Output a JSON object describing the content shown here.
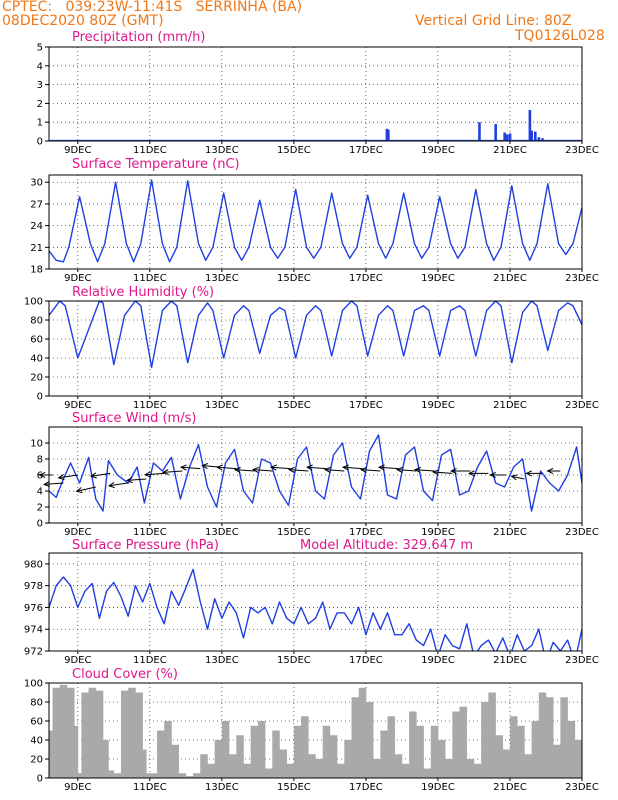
{
  "header": {
    "line1": "CPTEC:   039:23W-11:41S   SERRINHA (BA)",
    "line2": "08DEC2020 80Z (GMT)",
    "grid_note": "Vertical Grid Line: 80Z",
    "code": "TQ0126L028"
  },
  "colors": {
    "line": "#1f3fe0",
    "cloud": "#a9a9a9",
    "title": "#e0168a",
    "header": "#f07818"
  },
  "x_ticks": [
    "9DEC",
    "11DEC",
    "13DEC",
    "15DEC",
    "17DEC",
    "19DEC",
    "21DEC",
    "23DEC"
  ],
  "chart_data": [
    {
      "type": "bar",
      "title": "Precipitation (mm/h)",
      "ylim": [
        0,
        5
      ],
      "yticks": [
        0,
        1,
        2,
        3,
        4,
        5
      ],
      "x_unit": "days since 08DEC2020 00Z",
      "xlim": [
        8.2,
        23.0
      ],
      "x": [
        17.58,
        17.62,
        20.15,
        20.6,
        20.85,
        20.92,
        21.0,
        21.55,
        21.6,
        21.7,
        21.8,
        21.9
      ],
      "values": [
        0.65,
        0.6,
        1.0,
        0.9,
        0.45,
        0.35,
        0.4,
        1.65,
        0.55,
        0.5,
        0.2,
        0.15
      ]
    },
    {
      "type": "line",
      "title": "Surface Temperature (nC)",
      "ylim": [
        18,
        31
      ],
      "yticks": [
        18,
        21,
        24,
        27,
        30
      ],
      "xlim": [
        8.2,
        23.0
      ],
      "x": [
        8.2,
        8.4,
        8.6,
        8.75,
        9.05,
        9.35,
        9.55,
        9.75,
        10.05,
        10.35,
        10.55,
        10.75,
        11.05,
        11.35,
        11.55,
        11.75,
        12.05,
        12.35,
        12.55,
        12.75,
        13.05,
        13.35,
        13.55,
        13.75,
        14.05,
        14.35,
        14.55,
        14.75,
        15.05,
        15.35,
        15.55,
        15.75,
        16.05,
        16.35,
        16.55,
        16.75,
        17.05,
        17.35,
        17.55,
        17.75,
        18.05,
        18.35,
        18.55,
        18.75,
        19.05,
        19.35,
        19.55,
        19.75,
        20.05,
        20.35,
        20.55,
        20.75,
        21.05,
        21.35,
        21.55,
        21.75,
        22.05,
        22.35,
        22.55,
        22.75,
        23.0
      ],
      "values": [
        20.5,
        19.2,
        19.0,
        21.0,
        28.0,
        21.5,
        19.0,
        21.5,
        30.0,
        21.5,
        19.0,
        21.5,
        30.3,
        21.5,
        19.0,
        21.0,
        30.2,
        21.5,
        19.2,
        21.0,
        28.5,
        21.0,
        19.2,
        21.0,
        27.5,
        21.0,
        19.5,
        21.0,
        29.0,
        21.0,
        19.5,
        21.0,
        28.5,
        21.5,
        19.5,
        21.0,
        28.2,
        21.5,
        19.5,
        21.5,
        28.5,
        21.5,
        19.5,
        21.0,
        28.0,
        21.5,
        19.5,
        21.0,
        29.0,
        21.5,
        19.2,
        21.0,
        29.5,
        21.5,
        19.2,
        21.5,
        29.8,
        21.5,
        20.0,
        21.5,
        26.5
      ]
    },
    {
      "type": "line",
      "title": "Relative Humidity (%)",
      "ylim": [
        0,
        100
      ],
      "yticks": [
        0,
        20,
        40,
        60,
        80,
        100
      ],
      "xlim": [
        8.2,
        23.0
      ],
      "x": [
        8.2,
        8.5,
        8.65,
        9.0,
        9.35,
        9.6,
        9.7,
        10.0,
        10.3,
        10.6,
        10.75,
        11.05,
        11.35,
        11.6,
        11.75,
        12.05,
        12.35,
        12.6,
        12.75,
        13.05,
        13.35,
        13.6,
        13.75,
        14.05,
        14.35,
        14.6,
        14.75,
        15.05,
        15.35,
        15.6,
        15.75,
        16.05,
        16.35,
        16.6,
        16.75,
        17.05,
        17.35,
        17.6,
        17.75,
        18.05,
        18.35,
        18.6,
        18.75,
        19.05,
        19.35,
        19.6,
        19.75,
        20.05,
        20.35,
        20.6,
        20.75,
        21.05,
        21.35,
        21.6,
        21.75,
        22.05,
        22.35,
        22.6,
        22.75,
        23.0
      ],
      "values": [
        85,
        100,
        95,
        40,
        75,
        100,
        98,
        33,
        85,
        100,
        95,
        30,
        90,
        100,
        95,
        35,
        85,
        98,
        90,
        40,
        85,
        95,
        90,
        45,
        85,
        93,
        90,
        40,
        85,
        95,
        90,
        42,
        90,
        100,
        95,
        42,
        85,
        95,
        90,
        42,
        90,
        95,
        90,
        42,
        90,
        95,
        90,
        42,
        90,
        100,
        95,
        35,
        88,
        100,
        95,
        48,
        90,
        98,
        95,
        75
      ]
    },
    {
      "type": "line",
      "title": "Surface Wind (m/s)",
      "ylim": [
        0,
        12
      ],
      "yticks": [
        0,
        2,
        4,
        6,
        8,
        10
      ],
      "xlim": [
        8.2,
        23.0
      ],
      "x": [
        8.2,
        8.4,
        8.6,
        8.8,
        9.05,
        9.3,
        9.5,
        9.7,
        9.85,
        10.1,
        10.4,
        10.65,
        10.85,
        11.1,
        11.35,
        11.6,
        11.85,
        12.1,
        12.35,
        12.6,
        12.85,
        13.1,
        13.35,
        13.6,
        13.85,
        14.1,
        14.35,
        14.6,
        14.85,
        15.1,
        15.35,
        15.6,
        15.85,
        16.1,
        16.35,
        16.6,
        16.85,
        17.1,
        17.35,
        17.6,
        17.85,
        18.1,
        18.35,
        18.6,
        18.85,
        19.1,
        19.35,
        19.6,
        19.85,
        20.1,
        20.35,
        20.6,
        20.85,
        21.1,
        21.35,
        21.6,
        21.85,
        22.1,
        22.35,
        22.6,
        22.85,
        23.0
      ],
      "values": [
        4.0,
        3.2,
        5.5,
        7.5,
        5.0,
        8.2,
        3.0,
        1.5,
        7.8,
        6.0,
        5.0,
        7.0,
        2.5,
        7.5,
        6.5,
        8.2,
        3.0,
        7.0,
        9.8,
        4.5,
        2.0,
        7.5,
        9.2,
        4.0,
        2.5,
        8.0,
        7.5,
        4.0,
        2.2,
        8.0,
        9.5,
        4.0,
        3.0,
        8.5,
        10.0,
        4.5,
        3.0,
        9.0,
        11.0,
        3.5,
        3.0,
        8.5,
        9.5,
        4.0,
        2.8,
        8.5,
        9.2,
        3.5,
        4.0,
        7.0,
        9.0,
        5.0,
        4.5,
        7.0,
        8.0,
        1.5,
        6.5,
        5.0,
        4.0,
        6.0,
        9.5,
        5.0
      ],
      "arrows": [
        {
          "x": 8.3,
          "y": 6.0,
          "u": -0.4,
          "v": 0.0
        },
        {
          "x": 8.6,
          "y": 5.0,
          "u": -0.6,
          "v": -0.1
        },
        {
          "x": 9.0,
          "y": 6.0,
          "u": -0.6,
          "v": -0.2
        },
        {
          "x": 9.5,
          "y": 4.5,
          "u": -0.6,
          "v": -0.3
        },
        {
          "x": 9.9,
          "y": 6.2,
          "u": -0.6,
          "v": -0.2
        },
        {
          "x": 10.4,
          "y": 5.0,
          "u": -0.6,
          "v": -0.2
        },
        {
          "x": 10.9,
          "y": 5.5,
          "u": -0.6,
          "v": -0.1
        },
        {
          "x": 11.4,
          "y": 6.2,
          "u": -0.6,
          "v": -0.1
        },
        {
          "x": 11.9,
          "y": 6.5,
          "u": -0.6,
          "v": -0.1
        },
        {
          "x": 12.4,
          "y": 6.8,
          "u": -0.6,
          "v": 0.1
        },
        {
          "x": 12.9,
          "y": 7.0,
          "u": -0.5,
          "v": 0.1
        },
        {
          "x": 13.4,
          "y": 6.8,
          "u": -0.6,
          "v": 0.1
        },
        {
          "x": 13.9,
          "y": 6.5,
          "u": -0.6,
          "v": 0.1
        },
        {
          "x": 14.4,
          "y": 6.5,
          "u": -0.6,
          "v": 0.1
        },
        {
          "x": 14.9,
          "y": 6.8,
          "u": -0.6,
          "v": 0.1
        },
        {
          "x": 15.4,
          "y": 6.5,
          "u": -0.6,
          "v": 0.1
        },
        {
          "x": 15.9,
          "y": 6.8,
          "u": -0.6,
          "v": 0.1
        },
        {
          "x": 16.4,
          "y": 6.5,
          "u": -0.6,
          "v": 0.1
        },
        {
          "x": 16.9,
          "y": 6.8,
          "u": -0.6,
          "v": 0.1
        },
        {
          "x": 17.4,
          "y": 6.5,
          "u": -0.6,
          "v": 0.1
        },
        {
          "x": 17.9,
          "y": 6.8,
          "u": -0.6,
          "v": 0.1
        },
        {
          "x": 18.4,
          "y": 6.5,
          "u": -0.6,
          "v": 0.1
        },
        {
          "x": 18.9,
          "y": 6.5,
          "u": -0.6,
          "v": 0.1
        },
        {
          "x": 19.4,
          "y": 6.2,
          "u": -0.6,
          "v": 0.1
        },
        {
          "x": 19.9,
          "y": 6.5,
          "u": -0.6,
          "v": 0.0
        },
        {
          "x": 20.4,
          "y": 6.2,
          "u": -0.6,
          "v": 0.0
        },
        {
          "x": 20.9,
          "y": 6.0,
          "u": -0.5,
          "v": 0.0
        },
        {
          "x": 21.4,
          "y": 5.5,
          "u": -0.4,
          "v": 0.2
        },
        {
          "x": 21.9,
          "y": 6.2,
          "u": -0.5,
          "v": 0.0
        },
        {
          "x": 22.4,
          "y": 6.5,
          "u": -0.4,
          "v": 0.0
        }
      ]
    },
    {
      "type": "line",
      "title": "Surface Pressure (hPa)",
      "annotation": "Model Altitude: 329.647 m",
      "ylim": [
        972,
        981
      ],
      "yticks": [
        972,
        974,
        976,
        978,
        980
      ],
      "xlim": [
        8.2,
        23.0
      ],
      "x": [
        8.2,
        8.4,
        8.6,
        8.8,
        9.0,
        9.2,
        9.4,
        9.6,
        9.8,
        10.0,
        10.2,
        10.4,
        10.6,
        10.8,
        11.0,
        11.2,
        11.4,
        11.6,
        11.8,
        12.0,
        12.2,
        12.4,
        12.6,
        12.8,
        13.0,
        13.2,
        13.4,
        13.6,
        13.8,
        14.0,
        14.2,
        14.4,
        14.6,
        14.8,
        15.0,
        15.2,
        15.4,
        15.6,
        15.8,
        16.0,
        16.2,
        16.4,
        16.6,
        16.8,
        17.0,
        17.2,
        17.4,
        17.6,
        17.8,
        18.0,
        18.2,
        18.4,
        18.6,
        18.8,
        19.0,
        19.2,
        19.4,
        19.6,
        19.8,
        20.0,
        20.2,
        20.4,
        20.6,
        20.8,
        21.0,
        21.2,
        21.4,
        21.6,
        21.8,
        22.0,
        22.2,
        22.4,
        22.6,
        22.8,
        23.0
      ],
      "values": [
        976.0,
        978.0,
        978.8,
        978.0,
        976.0,
        977.5,
        978.2,
        975.0,
        977.5,
        978.3,
        977.0,
        975.2,
        978.0,
        976.5,
        978.2,
        976.0,
        974.5,
        977.5,
        976.2,
        977.8,
        979.5,
        976.5,
        974.0,
        976.8,
        975.0,
        976.5,
        975.5,
        973.2,
        976.0,
        975.5,
        976.0,
        974.5,
        976.5,
        975.0,
        974.5,
        976.0,
        974.5,
        975.0,
        976.5,
        974.0,
        975.5,
        975.5,
        974.5,
        976.0,
        973.5,
        975.5,
        974.0,
        975.5,
        973.5,
        973.5,
        974.5,
        973.0,
        972.5,
        974.0,
        971.5,
        973.5,
        972.5,
        972.2,
        974.5,
        971.5,
        972.5,
        973.0,
        971.8,
        973.2,
        971.5,
        973.5,
        972.0,
        972.5,
        974.0,
        971.0,
        972.8,
        972.0,
        973.0,
        971.0,
        974.0
      ]
    },
    {
      "type": "area",
      "title": "Cloud Cover (%)",
      "ylim": [
        0,
        100
      ],
      "yticks": [
        0,
        20,
        40,
        60,
        80,
        100
      ],
      "xlim": [
        8.2,
        23.0
      ],
      "x": [
        8.2,
        8.3,
        8.5,
        8.7,
        8.9,
        9.0,
        9.1,
        9.3,
        9.5,
        9.7,
        9.85,
        10.0,
        10.2,
        10.4,
        10.6,
        10.8,
        10.9,
        11.0,
        11.2,
        11.4,
        11.6,
        11.8,
        12.0,
        12.2,
        12.4,
        12.6,
        12.8,
        13.0,
        13.2,
        13.4,
        13.6,
        13.8,
        14.0,
        14.2,
        14.4,
        14.6,
        14.8,
        15.0,
        15.2,
        15.4,
        15.6,
        15.8,
        16.0,
        16.2,
        16.4,
        16.6,
        16.8,
        17.0,
        17.2,
        17.4,
        17.6,
        17.8,
        18.0,
        18.2,
        18.4,
        18.6,
        18.8,
        19.0,
        19.2,
        19.4,
        19.6,
        19.8,
        20.0,
        20.2,
        20.4,
        20.6,
        20.8,
        21.0,
        21.2,
        21.4,
        21.6,
        21.8,
        22.0,
        22.2,
        22.4,
        22.6,
        22.8,
        23.0
      ],
      "values": [
        50,
        95,
        98,
        95,
        55,
        5,
        90,
        95,
        92,
        40,
        8,
        5,
        92,
        95,
        90,
        30,
        5,
        5,
        50,
        60,
        35,
        5,
        2,
        5,
        25,
        15,
        40,
        60,
        25,
        45,
        15,
        55,
        60,
        10,
        50,
        30,
        15,
        55,
        65,
        25,
        20,
        55,
        45,
        15,
        40,
        85,
        95,
        80,
        20,
        50,
        65,
        25,
        15,
        70,
        55,
        10,
        55,
        40,
        20,
        70,
        75,
        20,
        15,
        80,
        90,
        45,
        30,
        65,
        55,
        25,
        60,
        90,
        85,
        35,
        85,
        60,
        40,
        55
      ]
    }
  ]
}
